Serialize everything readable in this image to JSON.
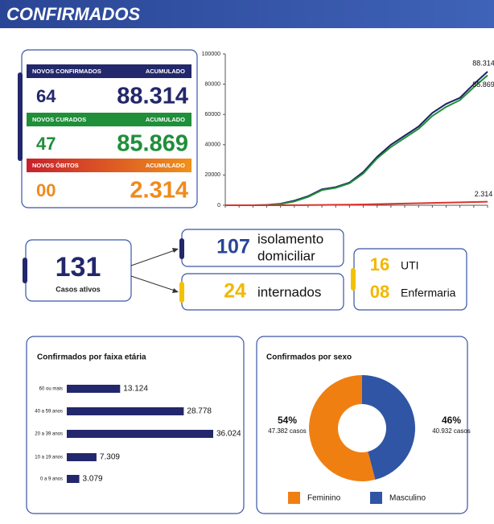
{
  "header": {
    "title": "CONFIRMADOS"
  },
  "summary": [
    {
      "label": "NOVOS CONFIRMADOS",
      "accum_label": "ACUMULADO",
      "new": "64",
      "total": "88.314"
    },
    {
      "label": "NOVOS CURADOS",
      "accum_label": "ACUMULADO",
      "new": "47",
      "total": "85.869"
    },
    {
      "label": "NOVOS ÓBITOS",
      "accum_label": "ACUMULADO",
      "new": "00",
      "total": "2.314"
    }
  ],
  "active": {
    "value": "131",
    "label": "Casos ativos",
    "home": {
      "value": "107",
      "label": [
        "isolamento",
        "domiciliar"
      ]
    },
    "hospital": {
      "value": "24",
      "label": "internados"
    },
    "icu": {
      "value": "16",
      "label": "UTI"
    },
    "ward": {
      "value": "08",
      "label": "Enfermaria"
    }
  },
  "chart_data": [
    {
      "type": "line",
      "categories": [
        null,
        null,
        null,
        null,
        null,
        null,
        null,
        null,
        null,
        null,
        null,
        null,
        null,
        null,
        null,
        null,
        null,
        null,
        null,
        null
      ],
      "series": [
        {
          "name": "Confirmados",
          "color": "#1d2060",
          "values": [
            0,
            0,
            0,
            200,
            1000,
            3000,
            6000,
            10500,
            12000,
            15000,
            22000,
            32000,
            40000,
            46000,
            52000,
            61000,
            67000,
            71000,
            80000,
            88314
          ],
          "value_labels": [
            null,
            null,
            null,
            null,
            null,
            null,
            null,
            null,
            null,
            null,
            null,
            null,
            null,
            null,
            null,
            null,
            null,
            null,
            null,
            "88.314"
          ]
        },
        {
          "name": "Curados",
          "color": "#1f8f3a",
          "values": [
            0,
            0,
            0,
            100,
            800,
            2500,
            5500,
            10000,
            11500,
            14500,
            21000,
            31000,
            38500,
            44500,
            50500,
            59000,
            65000,
            69500,
            78000,
            85869
          ],
          "value_labels": [
            null,
            null,
            null,
            null,
            null,
            null,
            null,
            null,
            null,
            null,
            null,
            null,
            null,
            null,
            null,
            null,
            null,
            null,
            null,
            "85.869"
          ]
        },
        {
          "name": "Óbitos",
          "color": "#d9342b",
          "values": [
            0,
            0,
            0,
            0,
            10,
            50,
            100,
            200,
            300,
            400,
            550,
            750,
            950,
            1150,
            1350,
            1550,
            1750,
            1950,
            2150,
            2314
          ],
          "value_labels": [
            null,
            null,
            null,
            null,
            null,
            null,
            null,
            null,
            null,
            null,
            null,
            null,
            null,
            null,
            null,
            null,
            null,
            null,
            null,
            "2.314"
          ]
        }
      ],
      "ylim": [
        0,
        100000
      ],
      "yticks": [
        0,
        20000,
        40000,
        60000,
        80000,
        100000
      ],
      "grid": false
    },
    {
      "type": "hbar",
      "title": "Confirmados por faixa etária",
      "categories": [
        "60 ou mais",
        "40 a 59 anos",
        "20 a 39 anos",
        "10 a 19 anos",
        "0 a 9 anos"
      ],
      "values": [
        13124,
        28778,
        36024,
        7309,
        3079
      ],
      "value_labels": [
        "13.124",
        "28.778",
        "36.024",
        "7.309",
        "3.079"
      ],
      "color": "#23276b"
    },
    {
      "type": "donut",
      "title": "Confirmados por sexo",
      "categories": [
        "Feminino",
        "Masculino"
      ],
      "values": [
        54,
        46
      ],
      "value_labels": [
        "54%",
        "46%"
      ],
      "case_labels": [
        "47.382 casos",
        "40.932 casos"
      ],
      "colors": [
        "#f07f12",
        "#2f55a4"
      ]
    }
  ]
}
